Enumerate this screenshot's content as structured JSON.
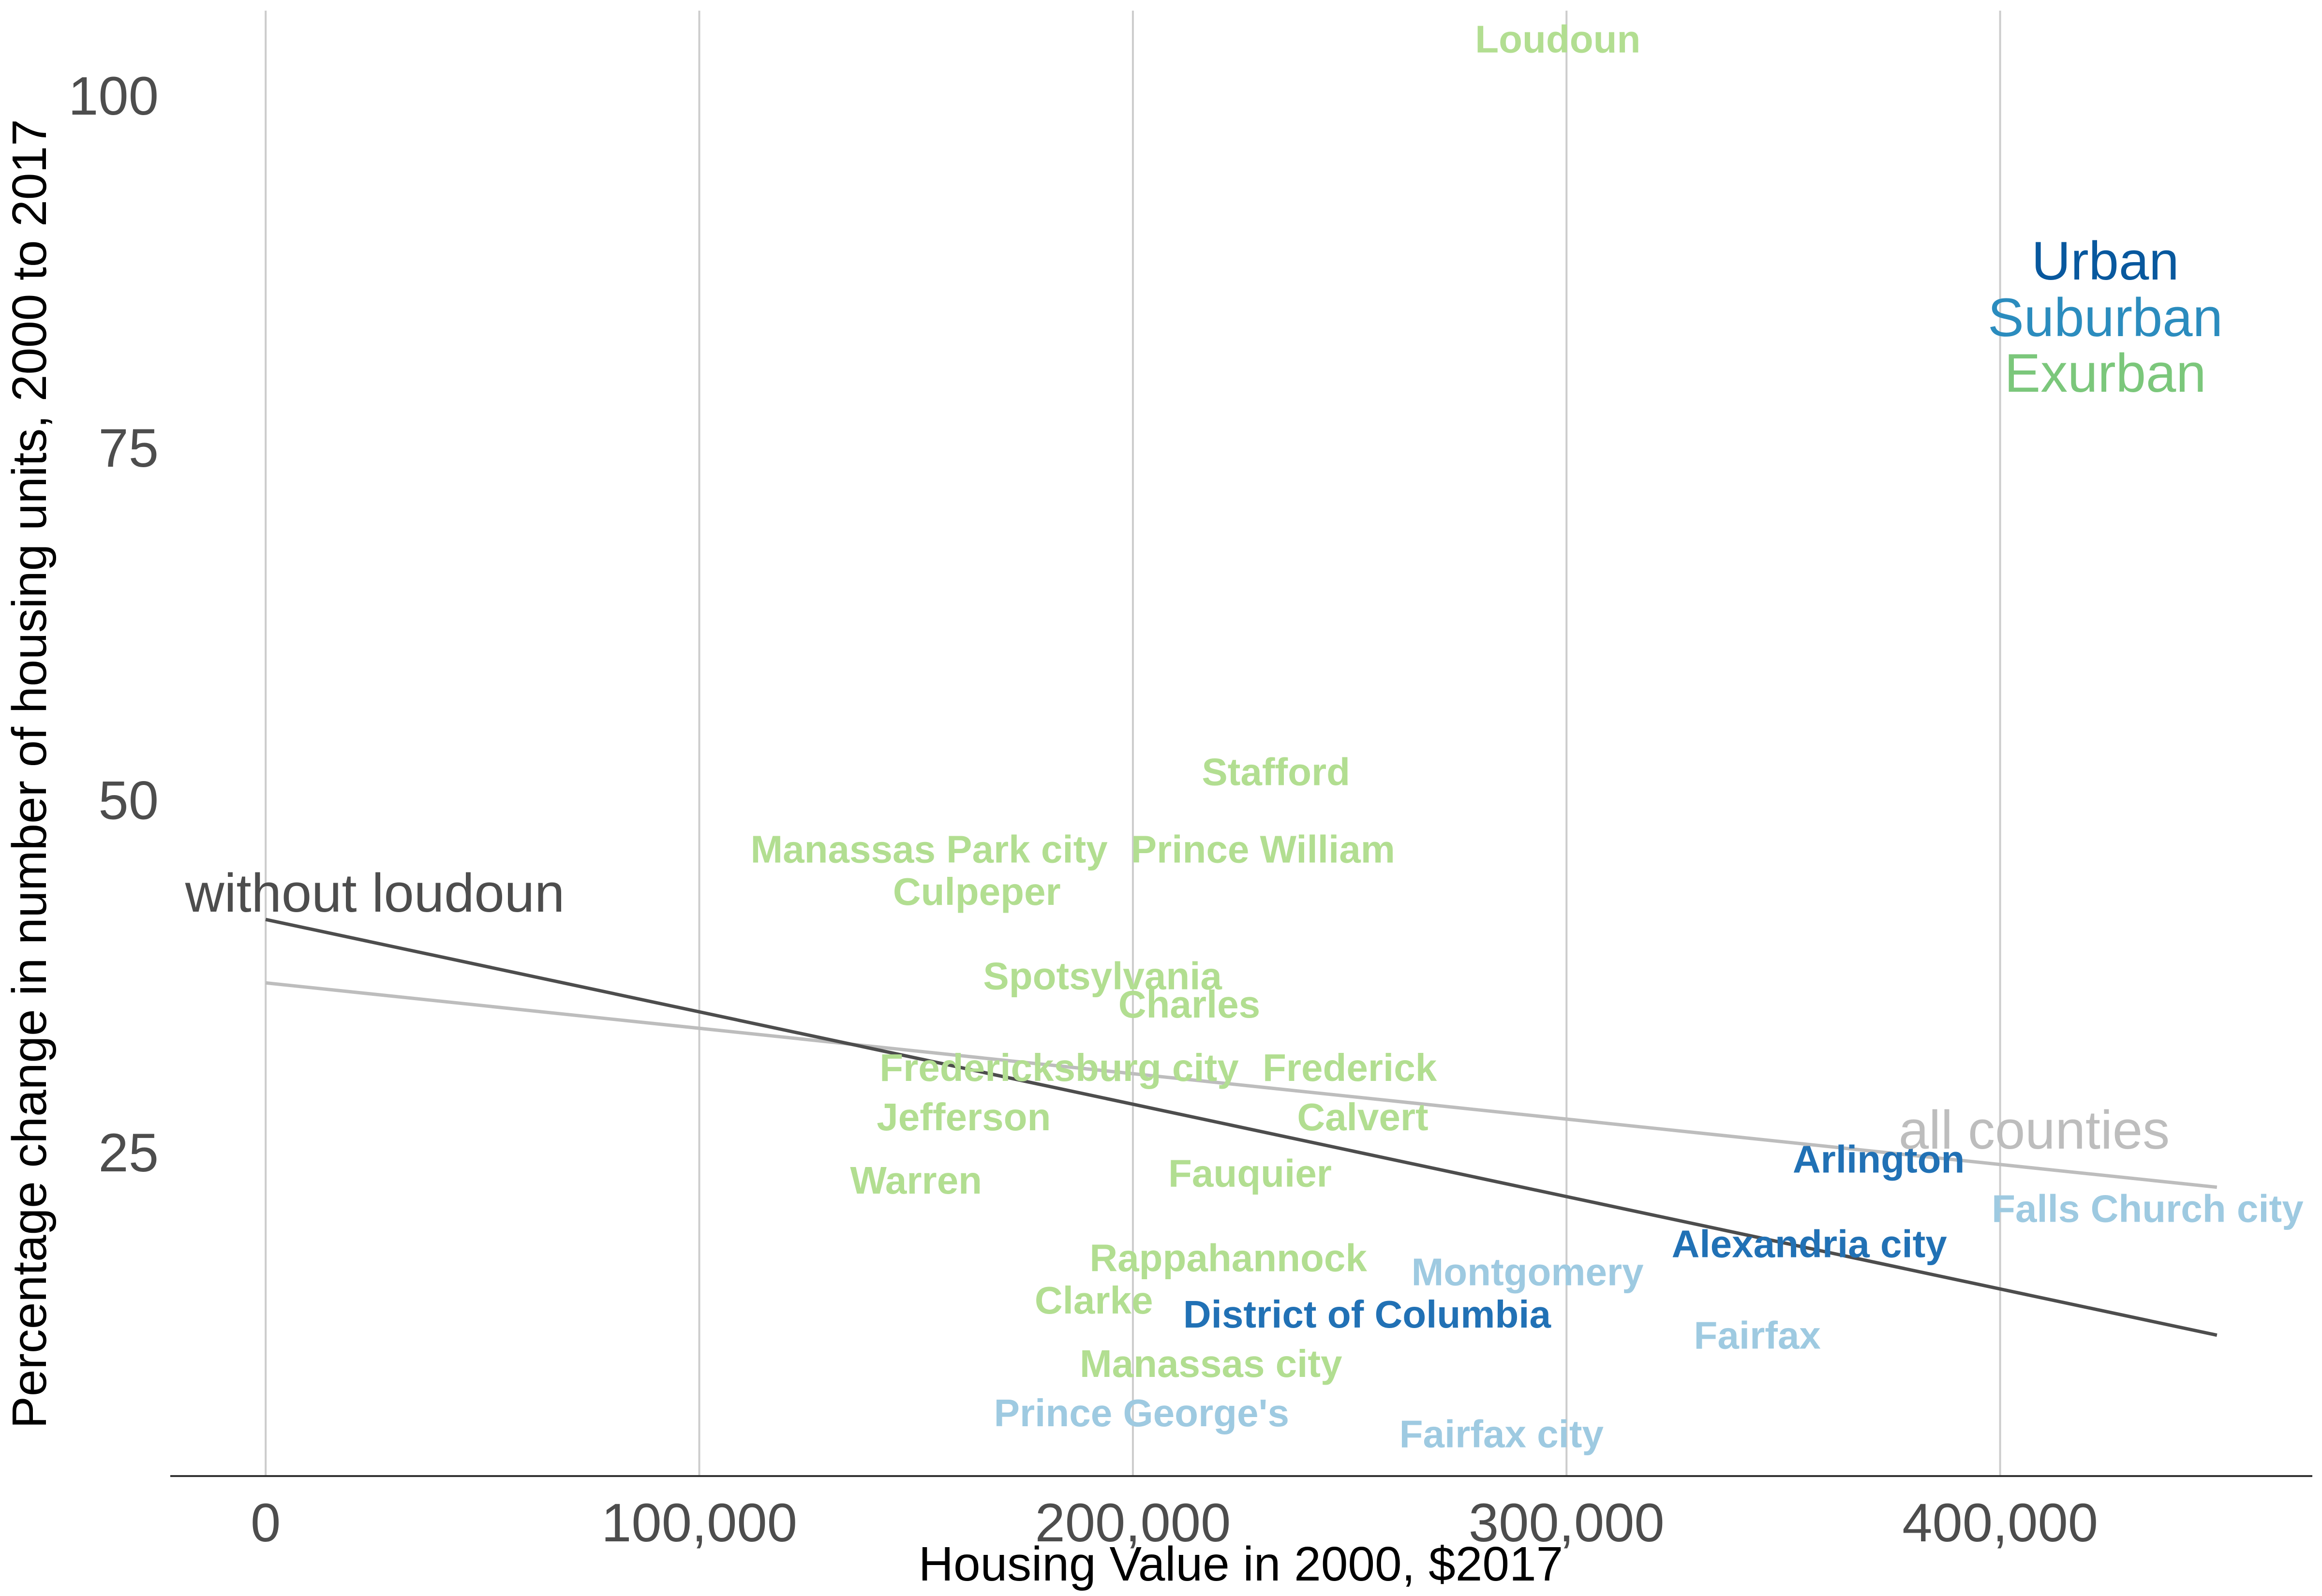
{
  "chart_data": {
    "type": "scatter",
    "title": "",
    "xlabel": "Housing Value in 2000, $2017",
    "ylabel": "Percentage change in number of housing units, 2000 to 2017",
    "xlim": [
      -22000,
      472000
    ],
    "ylim": [
      2,
      106
    ],
    "x_ticks": [
      0,
      100000,
      200000,
      300000,
      400000
    ],
    "x_tick_labels": [
      "0",
      "100,000",
      "200,000",
      "300,000",
      "400,000"
    ],
    "y_ticks": [
      25,
      50,
      75,
      100
    ],
    "y_tick_labels": [
      "25",
      "50",
      "75",
      "100"
    ],
    "grid": "vertical major gridlines only",
    "colors": {
      "Urban": "#08589e",
      "Suburban": "#2b8cbe",
      "Exurban": "#7bc77b",
      "urban_points": "#2171b5",
      "suburban_points": "#9ecae1",
      "exurban_points": "#b2de91",
      "trend_all": "#bdbdbd",
      "trend_without_loudoun": "#4d4d4d"
    },
    "legend": {
      "position": "top-right",
      "entries": [
        "Urban",
        "Suburban",
        "Exurban"
      ]
    },
    "points": [
      {
        "label": "Loudoun",
        "x": 298000,
        "y": 104,
        "category": "Exurban"
      },
      {
        "label": "Stafford",
        "x": 233000,
        "y": 52,
        "category": "Exurban"
      },
      {
        "label": "Manassas Park city",
        "x": 153000,
        "y": 46.5,
        "category": "Exurban"
      },
      {
        "label": "Prince William",
        "x": 230000,
        "y": 46.5,
        "category": "Exurban"
      },
      {
        "label": "Culpeper",
        "x": 164000,
        "y": 43.5,
        "category": "Exurban"
      },
      {
        "label": "Spotsylvania",
        "x": 193000,
        "y": 37.5,
        "category": "Exurban"
      },
      {
        "label": "Charles",
        "x": 213000,
        "y": 35.5,
        "category": "Exurban"
      },
      {
        "label": "Fredericksburg city",
        "x": 183000,
        "y": 31,
        "category": "Exurban"
      },
      {
        "label": "Frederick",
        "x": 250000,
        "y": 31,
        "category": "Exurban"
      },
      {
        "label": "Jefferson",
        "x": 161000,
        "y": 27.5,
        "category": "Exurban"
      },
      {
        "label": "Calvert",
        "x": 253000,
        "y": 27.5,
        "category": "Exurban"
      },
      {
        "label": "Warren",
        "x": 150000,
        "y": 23,
        "category": "Exurban"
      },
      {
        "label": "Fauquier",
        "x": 227000,
        "y": 23.5,
        "category": "Exurban"
      },
      {
        "label": "Rappahannock",
        "x": 222000,
        "y": 17.5,
        "category": "Exurban"
      },
      {
        "label": "Clarke",
        "x": 191000,
        "y": 14.5,
        "category": "Exurban"
      },
      {
        "label": "Manassas city",
        "x": 218000,
        "y": 10,
        "category": "Exurban"
      },
      {
        "label": "Arlington",
        "x": 372000,
        "y": 24.5,
        "category": "Urban"
      },
      {
        "label": "Alexandria city",
        "x": 356000,
        "y": 18.5,
        "category": "Urban"
      },
      {
        "label": "District of Columbia",
        "x": 254000,
        "y": 13.5,
        "category": "Urban"
      },
      {
        "label": "Falls Church city",
        "x": 434000,
        "y": 21,
        "category": "Suburban"
      },
      {
        "label": "Montgomery",
        "x": 291000,
        "y": 16.5,
        "category": "Suburban"
      },
      {
        "label": "Fairfax",
        "x": 344000,
        "y": 12,
        "category": "Suburban"
      },
      {
        "label": "Prince George's",
        "x": 202000,
        "y": 6.5,
        "category": "Suburban"
      },
      {
        "label": "Fairfax city",
        "x": 285000,
        "y": 5,
        "category": "Suburban"
      }
    ],
    "trend_lines": [
      {
        "name": "all counties",
        "x": [
          0,
          450000
        ],
        "y": [
          37,
          22.5
        ]
      },
      {
        "name": "without loudoun",
        "x": [
          0,
          450000
        ],
        "y": [
          41.5,
          12
        ]
      }
    ]
  }
}
